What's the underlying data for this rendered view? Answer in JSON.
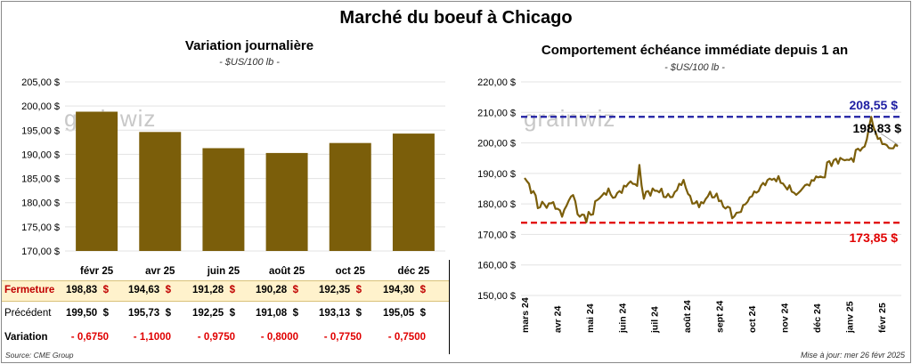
{
  "title": "Marché du boeuf à Chicago",
  "left": {
    "title": "Variation  journalière",
    "unit": "- $US/100 lb -",
    "watermark": "grainwiz"
  },
  "right": {
    "title": "Comportement  échéance immédiate depuis 1 an",
    "unit": "- $US/100 lb -",
    "watermark": "grainwiz",
    "max_label": "208,55 $",
    "last_label": "198,83 $",
    "min_label": "173,85 $"
  },
  "table": {
    "rows": [
      {
        "label": "Fermeture",
        "values": [
          "198,83",
          "194,63",
          "191,28",
          "190,28",
          "192,35",
          "194,30"
        ]
      },
      {
        "label": "Précédent",
        "values": [
          "199,50",
          "195,73",
          "192,25",
          "191,08",
          "193,13",
          "195,05"
        ]
      },
      {
        "label": "Variation",
        "values": [
          "- 0,6750",
          "- 1,1000",
          "- 0,9750",
          "- 0,8000",
          "- 0,7750",
          "- 0,7500"
        ]
      }
    ],
    "dollar": "$"
  },
  "footer": {
    "source": "Source: CME Group",
    "updated": "Mise à jour: mer 26 févr 2025"
  },
  "colors": {
    "bar": "#7b5e0a",
    "line": "#7b5e0a",
    "max_line": "#1f1fa3",
    "min_line": "#e00000"
  },
  "chart_data": [
    {
      "type": "bar",
      "categories": [
        "févr 25",
        "avr 25",
        "juin 25",
        "août 25",
        "oct 25",
        "déc 25"
      ],
      "values": [
        198.83,
        194.63,
        191.28,
        190.28,
        192.35,
        194.3
      ],
      "ylim": [
        170,
        205
      ],
      "yticks": [
        "170,00 $",
        "175,00 $",
        "180,00 $",
        "185,00 $",
        "190,00 $",
        "195,00 $",
        "200,00 $",
        "205,00 $"
      ],
      "grid": true
    },
    {
      "type": "line",
      "x_labels": [
        "mars 24",
        "avr 24",
        "mai 24",
        "juin 24",
        "juil 24",
        "août 24",
        "sept 24",
        "oct 24",
        "nov 24",
        "déc 24",
        "janv 25",
        "févr 25"
      ],
      "series": [
        {
          "values": [
            188.5,
            187.5,
            186.6,
            183.5,
            184.2,
            182.8,
            178.6,
            178.9,
            180.7,
            179.8,
            178.7,
            180.2,
            180.2,
            180.6,
            178.4,
            178.4,
            177.9,
            175.8,
            178.1,
            179.4,
            181.1,
            182.4,
            182.9,
            180.8,
            176.6,
            175.8,
            176.5,
            176.4,
            174.0,
            177.4,
            176.4,
            176.6,
            180.9,
            181.3,
            181.9,
            182.7,
            183.6,
            183.0,
            185.1,
            183.1,
            182.0,
            182.2,
            183.6,
            184.2,
            183.6,
            186.0,
            185.7,
            186.7,
            187.4,
            186.6,
            186.5,
            185.9,
            192.8,
            186.0,
            181.7,
            184.0,
            184.2,
            182.7,
            185.1,
            184.3,
            184.3,
            183.8,
            185.0,
            182.3,
            182.2,
            183.3,
            182.2,
            182.3,
            183.9,
            184.5,
            186.6,
            186.2,
            187.9,
            185.3,
            183.3,
            182.6,
            180.1,
            180.2,
            180.9,
            178.9,
            180.6,
            180.2,
            181.6,
            182.5,
            184.0,
            182.1,
            182.2,
            183.4,
            180.9,
            181.1,
            179.1,
            178.5,
            179.1,
            178.7,
            175.3,
            175.9,
            177.1,
            177.2,
            177.4,
            179.6,
            179.9,
            180.7,
            182.2,
            182.5,
            184.1,
            183.7,
            184.2,
            185.9,
            186.9,
            186.1,
            187.8,
            188.3,
            187.9,
            188.3,
            187.4,
            189.1,
            186.9,
            186.7,
            185.7,
            184.7,
            186.1,
            184.0,
            183.7,
            183.0,
            183.6,
            184.3,
            185.2,
            186.1,
            186.4,
            186.0,
            187.8,
            187.6,
            189.0,
            188.7,
            189.0,
            188.7,
            188.7,
            193.6,
            194.0,
            192.4,
            194.3,
            194.8,
            193.2,
            195.1,
            194.6,
            194.3,
            194.5,
            194.4,
            195.0,
            193.8,
            197.7,
            198.1,
            197.4,
            198.4,
            198.8,
            201.2,
            205.2,
            208.55,
            205.2,
            203.4,
            201.3,
            201.6,
            199.6,
            199.6,
            199.3,
            198.3,
            198.2,
            198.2,
            199.5,
            198.83
          ]
        }
      ],
      "max_line": 208.55,
      "min_line": 173.85,
      "ylim": [
        150,
        220
      ],
      "yticks": [
        "150,00 $",
        "160,00 $",
        "170,00 $",
        "180,00 $",
        "190,00 $",
        "200,00 $",
        "210,00 $",
        "220,00 $"
      ],
      "grid": true
    }
  ]
}
